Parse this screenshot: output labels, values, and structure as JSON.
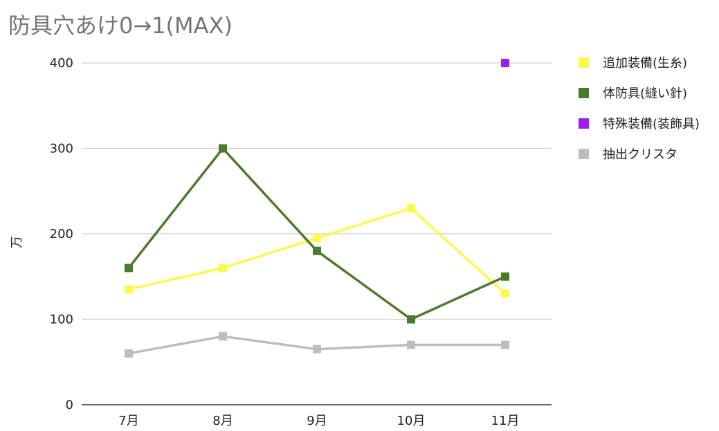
{
  "chart_data": {
    "type": "line",
    "title": "防具穴あけ0→1(MAX)",
    "xlabel": "",
    "ylabel": "万",
    "categories": [
      "7月",
      "8月",
      "9月",
      "10月",
      "11月"
    ],
    "ylim": [
      0,
      400
    ],
    "yticks": [
      "0",
      "100",
      "200",
      "300",
      "400"
    ],
    "grid": true,
    "legend_position": "right",
    "series": [
      {
        "name": "追加装備(生糸)",
        "color": "#fcf94c",
        "values": [
          135,
          160,
          195,
          230,
          130
        ]
      },
      {
        "name": "体防具(縫い針)",
        "color": "#4a7a2c",
        "values": [
          160,
          300,
          180,
          100,
          150
        ]
      },
      {
        "name": "特殊装備(装飾具)",
        "color": "#9b1df0",
        "values": [
          null,
          null,
          null,
          null,
          400
        ]
      },
      {
        "name": "抽出クリスタ",
        "color": "#bdbdbd",
        "values": [
          60,
          80,
          65,
          70,
          70
        ]
      }
    ]
  }
}
